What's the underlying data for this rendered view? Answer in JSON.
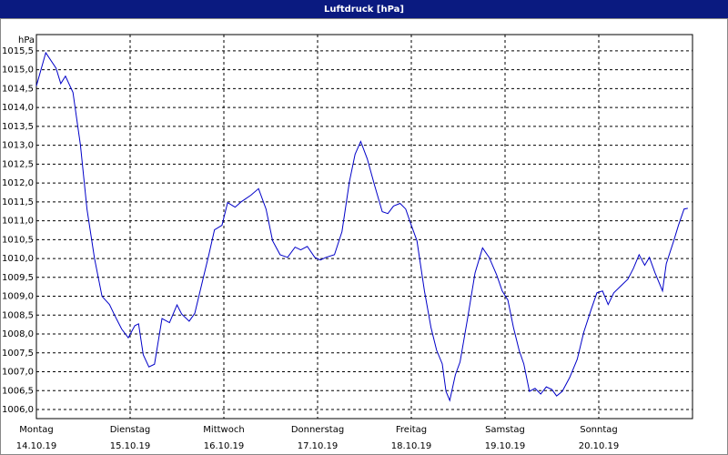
{
  "chart_data": {
    "type": "line",
    "title": "Luftdruck [hPa]",
    "y_unit": "hPa",
    "x": [
      0,
      0.1,
      0.21,
      0.26,
      0.31,
      0.39,
      0.47,
      0.54,
      0.62,
      0.7,
      0.78,
      0.84,
      0.91,
      0.98,
      1.05,
      1.09,
      1.14,
      1.2,
      1.26,
      1.34,
      1.42,
      1.5,
      1.55,
      1.63,
      1.69,
      1.77,
      1.84,
      1.9,
      1.98,
      2.04,
      2.12,
      2.19,
      2.29,
      2.37,
      2.45,
      2.52,
      2.6,
      2.68,
      2.76,
      2.82,
      2.89,
      2.97,
      3.03,
      3.09,
      3.18,
      3.26,
      3.34,
      3.4,
      3.46,
      3.53,
      3.61,
      3.69,
      3.75,
      3.81,
      3.88,
      3.94,
      4.0,
      4.06,
      4.14,
      4.21,
      4.27,
      4.33,
      4.37,
      4.41,
      4.47,
      4.52,
      4.6,
      4.68,
      4.76,
      4.83,
      4.91,
      4.97,
      5.03,
      5.09,
      5.15,
      5.2,
      5.26,
      5.32,
      5.38,
      5.44,
      5.5,
      5.55,
      5.61,
      5.69,
      5.77,
      5.84,
      5.92,
      5.98,
      6.04,
      6.1,
      6.16,
      6.23,
      6.31,
      6.37,
      6.43,
      6.49,
      6.54,
      6.6,
      6.68,
      6.72,
      6.8,
      6.85,
      6.91,
      6.95
    ],
    "series": [
      {
        "name": "Luftdruck",
        "color": "#0000c8",
        "values": [
          1014.57,
          1015.45,
          1015.04,
          1014.63,
          1014.83,
          1014.4,
          1013.0,
          1011.3,
          1010.0,
          1009.0,
          1008.78,
          1008.47,
          1008.13,
          1007.9,
          1008.22,
          1008.27,
          1007.45,
          1007.13,
          1007.2,
          1008.41,
          1008.3,
          1008.77,
          1008.53,
          1008.34,
          1008.55,
          1009.38,
          1010.1,
          1010.76,
          1010.88,
          1011.48,
          1011.36,
          1011.51,
          1011.68,
          1011.85,
          1011.31,
          1010.47,
          1010.1,
          1010.03,
          1010.3,
          1010.23,
          1010.32,
          1010.03,
          1009.96,
          1010.03,
          1010.1,
          1010.71,
          1012.04,
          1012.76,
          1013.1,
          1012.64,
          1011.92,
          1011.24,
          1011.19,
          1011.39,
          1011.46,
          1011.31,
          1010.88,
          1010.47,
          1009.14,
          1008.17,
          1007.57,
          1007.21,
          1006.48,
          1006.24,
          1006.92,
          1007.26,
          1008.41,
          1009.62,
          1010.28,
          1010.03,
          1009.57,
          1009.14,
          1008.9,
          1008.17,
          1007.57,
          1007.21,
          1006.48,
          1006.56,
          1006.41,
          1006.6,
          1006.53,
          1006.36,
          1006.48,
          1006.85,
          1007.33,
          1008.05,
          1008.66,
          1009.09,
          1009.14,
          1008.78,
          1009.09,
          1009.26,
          1009.45,
          1009.74,
          1010.1,
          1009.82,
          1010.03,
          1009.62,
          1009.14,
          1009.86,
          1010.47,
          1010.88,
          1011.31,
          1011.33
        ]
      }
    ],
    "xlim": [
      0,
      7
    ],
    "xticks": [
      {
        "value": 0,
        "label": "Montag",
        "date": "14.10.19"
      },
      {
        "value": 1,
        "label": "Dienstag",
        "date": "15.10.19"
      },
      {
        "value": 2,
        "label": "Mittwoch",
        "date": "16.10.19"
      },
      {
        "value": 3,
        "label": "Donnerstag",
        "date": "17.10.19"
      },
      {
        "value": 4,
        "label": "Freitag",
        "date": "18.10.19"
      },
      {
        "value": 5,
        "label": "Samstag",
        "date": "19.10.19"
      },
      {
        "value": 6,
        "label": "Sonntag",
        "date": "20.10.19"
      }
    ],
    "ylim": [
      1005.76,
      1015.93
    ],
    "yticks": [
      {
        "value": 1006,
        "label": "1006,0"
      },
      {
        "value": 1006.5,
        "label": "1006,5"
      },
      {
        "value": 1007,
        "label": "1007,0"
      },
      {
        "value": 1007.5,
        "label": "1007,5"
      },
      {
        "value": 1008,
        "label": "1008,0"
      },
      {
        "value": 1008.5,
        "label": "1008,5"
      },
      {
        "value": 1009,
        "label": "1009,0"
      },
      {
        "value": 1009.5,
        "label": "1009,5"
      },
      {
        "value": 1010,
        "label": "1010,0"
      },
      {
        "value": 1010.5,
        "label": "1010,5"
      },
      {
        "value": 1011,
        "label": "1011,0"
      },
      {
        "value": 1011.5,
        "label": "1011,5"
      },
      {
        "value": 1012,
        "label": "1012,0"
      },
      {
        "value": 1012.5,
        "label": "1012,5"
      },
      {
        "value": 1013,
        "label": "1013,0"
      },
      {
        "value": 1013.5,
        "label": "1013,5"
      },
      {
        "value": 1014,
        "label": "1014,0"
      },
      {
        "value": 1014.5,
        "label": "1014,5"
      },
      {
        "value": 1015,
        "label": "1015,0"
      },
      {
        "value": 1015.5,
        "label": "1015,5"
      }
    ],
    "grid": true
  }
}
